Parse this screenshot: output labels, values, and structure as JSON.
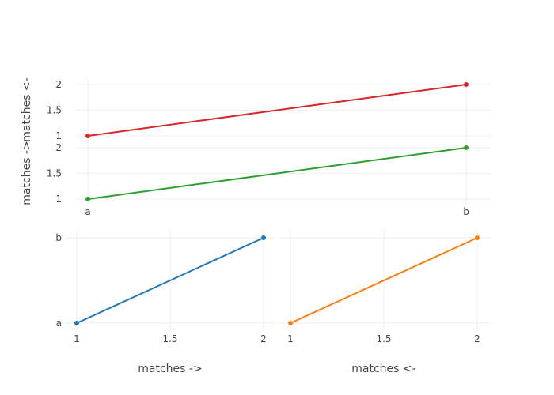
{
  "chart_data": [
    {
      "id": "top",
      "type": "line",
      "x_categories": [
        "a",
        "b"
      ],
      "y_ticks": [
        1,
        1.5,
        2
      ],
      "series": [
        {
          "x": [
            "a",
            "b"
          ],
          "y": [
            1,
            2
          ],
          "color": "#d62728"
        }
      ],
      "ylabel": "matches <-"
    },
    {
      "id": "middle",
      "type": "line",
      "x_categories": [
        "a",
        "b"
      ],
      "y_ticks": [
        1,
        1.5,
        2
      ],
      "series": [
        {
          "x": [
            "a",
            "b"
          ],
          "y": [
            1,
            2
          ],
          "color": "#2ca02c"
        }
      ],
      "ylabel": "matches ->"
    },
    {
      "id": "bottom-left",
      "type": "line",
      "x_ticks": [
        1,
        1.5,
        2
      ],
      "y_categories": [
        "a",
        "b"
      ],
      "series": [
        {
          "x": [
            1,
            2
          ],
          "y": [
            "a",
            "b"
          ],
          "color": "#1f77b4"
        }
      ],
      "xlabel": "matches ->"
    },
    {
      "id": "bottom-right",
      "type": "line",
      "x_ticks": [
        1,
        1.5,
        2
      ],
      "y_categories": [
        "a",
        "b"
      ],
      "series": [
        {
          "x": [
            1,
            2
          ],
          "y": [
            "a",
            "b"
          ],
          "color": "#ff7f0e"
        }
      ],
      "xlabel": "matches <-"
    }
  ]
}
